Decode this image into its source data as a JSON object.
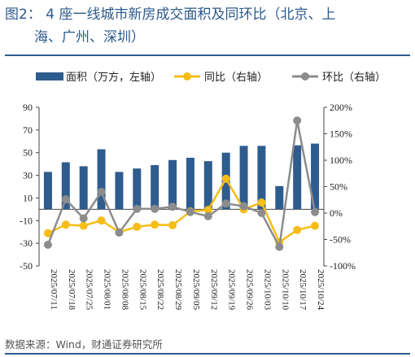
{
  "title": {
    "line1": "图2：  4 座一线城市新房成交面积及同环比（北京、上",
    "line2": "海、广州、深圳）"
  },
  "source": "数据来源：Wind，财通证券研究所",
  "colors": {
    "bar": "#2f5c8f",
    "yoy": "#f6bd16",
    "mom": "#8c8c8c",
    "title": "#2c5a8c"
  },
  "chart_data": {
    "type": "bar+line",
    "categories": [
      "2025/07/11",
      "2025/07/18",
      "2025/07/25",
      "2025/08/01",
      "2025/08/08",
      "2025/08/15",
      "2025/08/22",
      "2025/08/29",
      "2025/09/05",
      "2025/09/12",
      "2025/09/19",
      "2025/09/26",
      "2025/10/03",
      "2025/10/10",
      "2025/10/17",
      "2025/10/24"
    ],
    "left_axis": {
      "min": -50,
      "max": 90,
      "ticks": [
        -50,
        -30,
        -10,
        10,
        30,
        50,
        70,
        90
      ]
    },
    "right_axis": {
      "min": -100,
      "max": 200,
      "ticks": [
        "-100%",
        "-50%",
        "0%",
        "50%",
        "100%",
        "150%",
        "200%"
      ]
    },
    "series": [
      {
        "name": "面积（万方，左轴）",
        "type": "bar",
        "axis": "left",
        "values": [
          33,
          41.5,
          38,
          53,
          33,
          36,
          39,
          43.5,
          45.5,
          42.5,
          50,
          56,
          56,
          20.5,
          56.5,
          58
        ]
      },
      {
        "name": "同比（右轴）",
        "type": "line",
        "axis": "right",
        "values": [
          -38,
          -22,
          -24,
          -14,
          -36,
          -26,
          -22,
          -23,
          3,
          6,
          65,
          7,
          20,
          -55,
          -32,
          -24
        ]
      },
      {
        "name": "环比（右轴）",
        "type": "line",
        "axis": "right",
        "values": [
          -60,
          26,
          -10,
          40,
          -37,
          8,
          8,
          12,
          2,
          -6,
          18,
          13,
          0,
          -64,
          175,
          2
        ]
      }
    ],
    "legend_position": "top",
    "grid": false
  }
}
